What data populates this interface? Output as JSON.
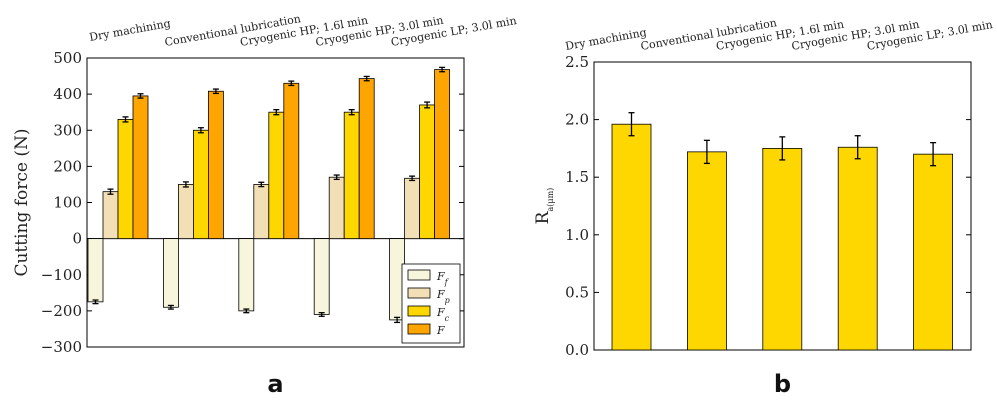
{
  "chart_data": [
    {
      "type": "bar",
      "panel_label": "a",
      "ylabel": "Cutting force (N)",
      "ylim": [
        -300,
        500
      ],
      "yticks": [
        -300,
        -200,
        -100,
        0,
        100,
        200,
        300,
        400,
        500
      ],
      "categories": [
        "Dry machining",
        "Conventional lubrication",
        "Cryogenic HP; 1.6l min",
        "Cryogenic HP; 3.0l min",
        "Cryogenic LP; 3.0l min"
      ],
      "legend_position": "lower-right",
      "series": [
        {
          "name": "F_f",
          "color": "#f7f5dc",
          "values": [
            -175,
            -190,
            -200,
            -210,
            -225
          ],
          "errors": [
            5,
            5,
            5,
            5,
            7
          ]
        },
        {
          "name": "F_p",
          "color": "#f3dfb5",
          "values": [
            130,
            150,
            150,
            170,
            167
          ],
          "errors": [
            7,
            7,
            6,
            6,
            6
          ]
        },
        {
          "name": "F_c",
          "color": "#ffd700",
          "values": [
            330,
            300,
            350,
            350,
            370
          ],
          "errors": [
            7,
            7,
            7,
            7,
            8
          ]
        },
        {
          "name": "F",
          "color": "#ffa500",
          "values": [
            395,
            408,
            430,
            443,
            468
          ],
          "errors": [
            6,
            6,
            6,
            6,
            6
          ]
        }
      ]
    },
    {
      "type": "bar",
      "panel_label": "b",
      "ylabel": "R_a(μm)",
      "ylim": [
        0.0,
        2.5
      ],
      "yticks": [
        0.0,
        0.5,
        1.0,
        1.5,
        2.0,
        2.5
      ],
      "categories": [
        "Dry machining",
        "Conventional lubrication",
        "Cryogenic HP; 1.6l min",
        "Cryogenic HP; 3.0l min",
        "Cryogenic LP; 3.0l min"
      ],
      "series": [
        {
          "color": "#ffd700",
          "values": [
            1.96,
            1.72,
            1.75,
            1.76,
            1.7
          ],
          "errors": [
            0.1,
            0.1,
            0.1,
            0.1,
            0.1
          ]
        }
      ]
    }
  ]
}
